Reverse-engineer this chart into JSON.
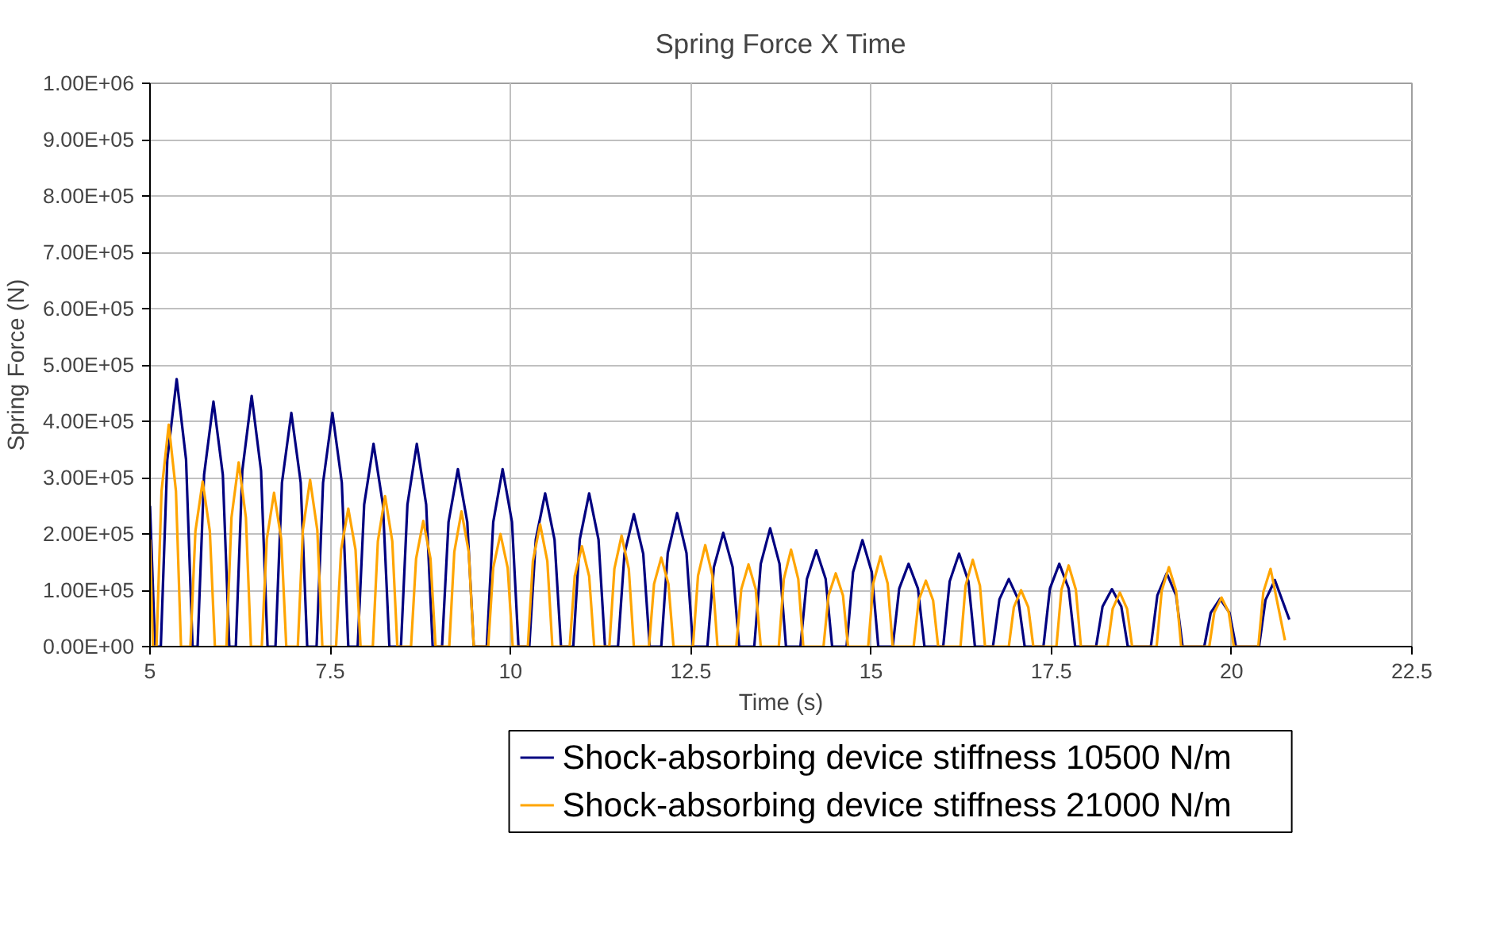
{
  "chart_data": {
    "type": "line",
    "title": "Spring Force X Time",
    "xlabel": "Time (s)",
    "ylabel": "Spring Force (N)",
    "xlim": [
      5,
      22.5
    ],
    "xticks": [
      5,
      7.5,
      10,
      12.5,
      15,
      17.5,
      20,
      22.5
    ],
    "ylim": [
      0,
      1000000
    ],
    "yticks": [
      {
        "value": 0,
        "label": "0.00E+00"
      },
      {
        "value": 100000,
        "label": "1.00E+05"
      },
      {
        "value": 200000,
        "label": "2.00E+05"
      },
      {
        "value": 300000,
        "label": "3.00E+05"
      },
      {
        "value": 400000,
        "label": "4.00E+05"
      },
      {
        "value": 500000,
        "label": "5.00E+05"
      },
      {
        "value": 600000,
        "label": "6.00E+05"
      },
      {
        "value": 700000,
        "label": "7.00E+05"
      },
      {
        "value": 800000,
        "label": "8.00E+05"
      },
      {
        "value": 900000,
        "label": "9.00E+05"
      },
      {
        "value": 1000000,
        "label": "1.00E+06"
      }
    ],
    "grid": true,
    "legend": "bottom",
    "marker": "none",
    "line_style": "solid",
    "series": [
      {
        "name": "Shock-absorbing device stiffness 10500 N/m",
        "color": "#000080",
        "x": [
          5.0,
          5.07,
          5.15,
          5.24,
          5.37,
          5.5,
          5.59,
          5.66,
          5.75,
          5.88,
          6.01,
          6.1,
          6.19,
          6.28,
          6.41,
          6.54,
          6.63,
          6.74,
          6.83,
          6.96,
          7.09,
          7.18,
          7.31,
          7.4,
          7.53,
          7.66,
          7.75,
          7.88,
          7.97,
          8.1,
          8.23,
          8.32,
          8.48,
          8.57,
          8.7,
          8.83,
          8.92,
          9.05,
          9.14,
          9.27,
          9.4,
          9.49,
          9.67,
          9.76,
          9.89,
          10.02,
          10.11,
          10.26,
          10.35,
          10.48,
          10.61,
          10.7,
          10.87,
          10.96,
          11.09,
          11.22,
          11.31,
          11.49,
          11.58,
          11.71,
          11.84,
          11.93,
          12.09,
          12.18,
          12.31,
          12.44,
          12.53,
          12.73,
          12.82,
          12.95,
          13.08,
          13.17,
          13.38,
          13.47,
          13.6,
          13.73,
          13.82,
          14.02,
          14.11,
          14.24,
          14.37,
          14.46,
          14.66,
          14.75,
          14.88,
          15.01,
          15.1,
          15.3,
          15.39,
          15.52,
          15.65,
          15.74,
          16.0,
          16.09,
          16.22,
          16.35,
          16.44,
          16.69,
          16.78,
          16.91,
          17.04,
          17.13,
          17.39,
          17.48,
          17.61,
          17.74,
          17.83,
          18.12,
          18.21,
          18.34,
          18.47,
          18.56,
          18.88,
          18.97,
          19.1,
          19.23,
          19.32,
          19.62,
          19.71,
          19.84,
          19.97,
          20.06,
          20.38,
          20.47,
          20.6,
          20.8
        ],
        "values": [
          250000,
          0,
          0,
          332000,
          475000,
          332000,
          0,
          0,
          305000,
          435000,
          305000,
          0,
          0,
          312000,
          445000,
          312000,
          0,
          0,
          291000,
          415000,
          291000,
          0,
          0,
          291000,
          415000,
          291000,
          0,
          0,
          252000,
          360000,
          252000,
          0,
          0,
          252000,
          360000,
          252000,
          0,
          0,
          221000,
          315000,
          221000,
          0,
          0,
          221000,
          315000,
          221000,
          0,
          0,
          190000,
          272000,
          190000,
          0,
          0,
          190000,
          272000,
          190000,
          0,
          0,
          165000,
          235000,
          165000,
          0,
          0,
          166000,
          237000,
          166000,
          0,
          0,
          141000,
          202000,
          141000,
          0,
          0,
          147000,
          210000,
          147000,
          0,
          0,
          120000,
          171000,
          120000,
          0,
          0,
          132000,
          189000,
          132000,
          0,
          0,
          103000,
          147000,
          103000,
          0,
          0,
          116000,
          165000,
          116000,
          0,
          0,
          84000,
          120000,
          84000,
          0,
          0,
          103000,
          147000,
          103000,
          0,
          0,
          71000,
          102000,
          71000,
          0,
          0,
          91000,
          130000,
          91000,
          0,
          0,
          60000,
          85000,
          60000,
          0,
          0,
          83000,
          118000,
          48000
        ]
      },
      {
        "name": "Shock-absorbing device stiffness  21000 N/m",
        "color": "#ffa500",
        "x": [
          5.0,
          5.04,
          5.09,
          5.16,
          5.26,
          5.36,
          5.43,
          5.56,
          5.63,
          5.73,
          5.83,
          5.9,
          6.06,
          6.13,
          6.23,
          6.33,
          6.4,
          6.55,
          6.62,
          6.72,
          6.82,
          6.89,
          7.05,
          7.12,
          7.22,
          7.32,
          7.39,
          7.58,
          7.65,
          7.75,
          7.85,
          7.92,
          8.09,
          8.16,
          8.26,
          8.36,
          8.43,
          8.62,
          8.69,
          8.79,
          8.89,
          8.96,
          9.15,
          9.22,
          9.32,
          9.42,
          9.49,
          9.69,
          9.76,
          9.86,
          9.96,
          10.03,
          10.24,
          10.31,
          10.41,
          10.51,
          10.58,
          10.82,
          10.89,
          10.99,
          11.09,
          11.16,
          11.37,
          11.44,
          11.54,
          11.64,
          11.71,
          11.92,
          11.99,
          12.09,
          12.19,
          12.26,
          12.53,
          12.6,
          12.7,
          12.8,
          12.87,
          13.13,
          13.2,
          13.3,
          13.4,
          13.47,
          13.72,
          13.79,
          13.89,
          13.99,
          14.06,
          14.34,
          14.41,
          14.51,
          14.61,
          14.68,
          14.96,
          15.03,
          15.13,
          15.23,
          15.3,
          15.59,
          15.66,
          15.76,
          15.86,
          15.93,
          16.24,
          16.31,
          16.41,
          16.51,
          16.58,
          16.91,
          16.98,
          17.08,
          17.18,
          17.25,
          17.57,
          17.64,
          17.74,
          17.84,
          17.91,
          18.28,
          18.35,
          18.45,
          18.55,
          18.62,
          18.96,
          19.03,
          19.13,
          19.23,
          19.3,
          19.69,
          19.76,
          19.86,
          19.96,
          20.03,
          20.37,
          20.44,
          20.54,
          20.74
        ],
        "values": [
          190000,
          0,
          0,
          276000,
          394000,
          276000,
          0,
          0,
          205000,
          293000,
          205000,
          0,
          0,
          229000,
          327000,
          229000,
          0,
          0,
          191000,
          273000,
          191000,
          0,
          0,
          207000,
          296000,
          207000,
          0,
          0,
          172000,
          245000,
          172000,
          0,
          0,
          187000,
          267000,
          187000,
          0,
          0,
          156000,
          223000,
          156000,
          0,
          0,
          168000,
          240000,
          168000,
          0,
          0,
          140000,
          200000,
          140000,
          0,
          0,
          152000,
          217000,
          152000,
          0,
          0,
          125000,
          178000,
          125000,
          0,
          0,
          138000,
          197000,
          138000,
          0,
          0,
          111000,
          158000,
          111000,
          0,
          0,
          126000,
          180000,
          126000,
          0,
          0,
          102000,
          146000,
          102000,
          0,
          0,
          120000,
          172000,
          120000,
          0,
          0,
          91000,
          130000,
          91000,
          0,
          0,
          112000,
          160000,
          112000,
          0,
          0,
          82000,
          117000,
          82000,
          0,
          0,
          108000,
          154000,
          108000,
          0,
          0,
          70000,
          100000,
          70000,
          0,
          0,
          101000,
          144000,
          101000,
          0,
          0,
          67000,
          96000,
          67000,
          0,
          0,
          99000,
          141000,
          99000,
          0,
          0,
          61000,
          87000,
          61000,
          0,
          0,
          97000,
          138000,
          11000
        ]
      }
    ]
  }
}
